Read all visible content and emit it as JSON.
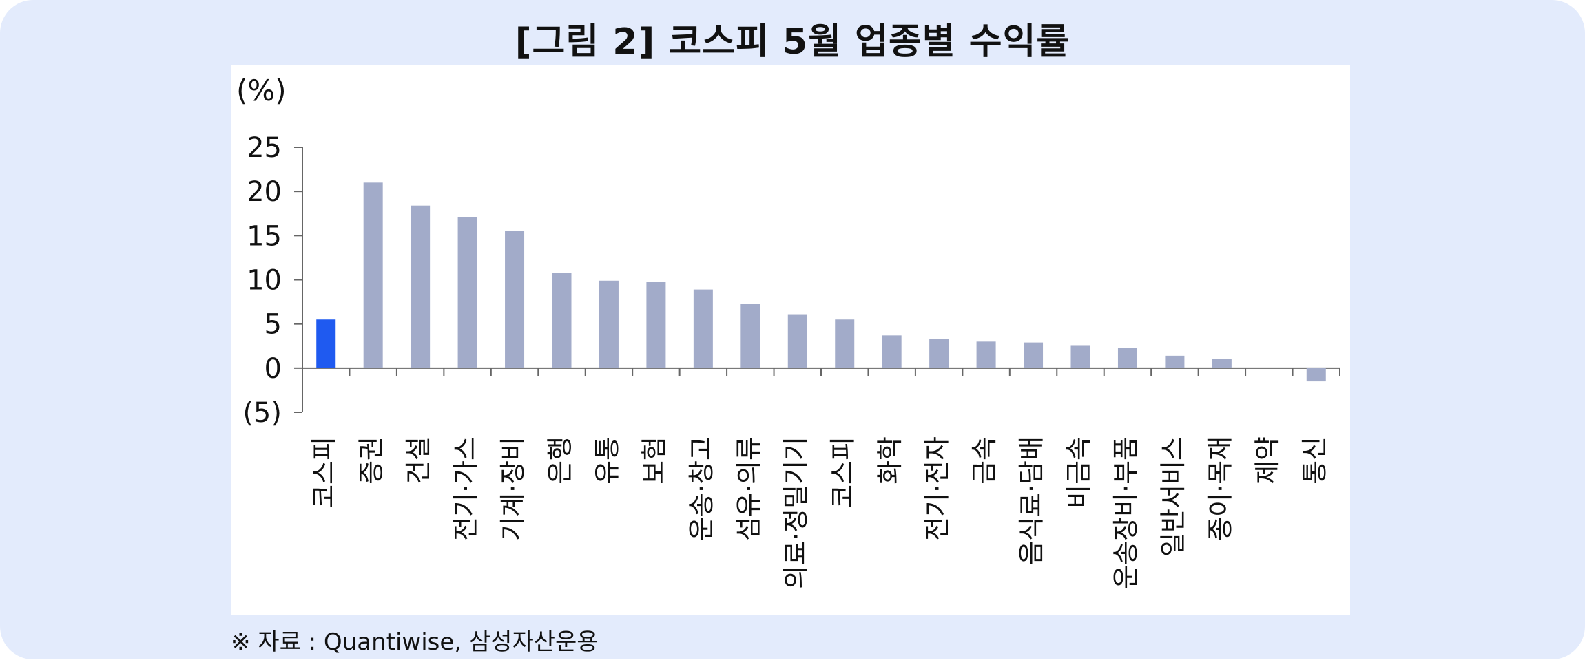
{
  "title": "[그림 2] 코스피 5월 업종별 수익률",
  "source": "※ 자료 : Quantiwise, 삼성자산운용",
  "colors": {
    "background": "#e3ebfc",
    "highlight_bar": "#1f5af0",
    "bar": "#a2abc9",
    "axis": "#666666"
  },
  "chart_data": {
    "type": "bar",
    "ylabel": "(%)",
    "ylim": [
      -5,
      25
    ],
    "yticks": [
      25,
      20,
      15,
      10,
      5,
      0,
      -5
    ],
    "ytick_labels": [
      "25",
      "20",
      "15",
      "10",
      "5",
      "0",
      "(5)"
    ],
    "categories": [
      "코스피",
      "증권",
      "건설",
      "전기·가스",
      "기계·장비",
      "은행",
      "유통",
      "보험",
      "운송·창고",
      "섬유·의류",
      "의료·정밀기기",
      "코스피",
      "화학",
      "전기·전자",
      "금속",
      "음식료·담배",
      "비금속",
      "운송장비·부품",
      "일반서비스",
      "종이·목재",
      "제약",
      "통신"
    ],
    "values": [
      5.5,
      21.0,
      18.4,
      17.1,
      15.5,
      10.8,
      9.9,
      9.8,
      8.9,
      7.3,
      6.1,
      5.5,
      3.7,
      3.3,
      3.0,
      2.9,
      2.6,
      2.3,
      1.4,
      1.0,
      0.0,
      -1.5
    ],
    "highlight_index": 0,
    "grid": false,
    "legend": "none"
  }
}
